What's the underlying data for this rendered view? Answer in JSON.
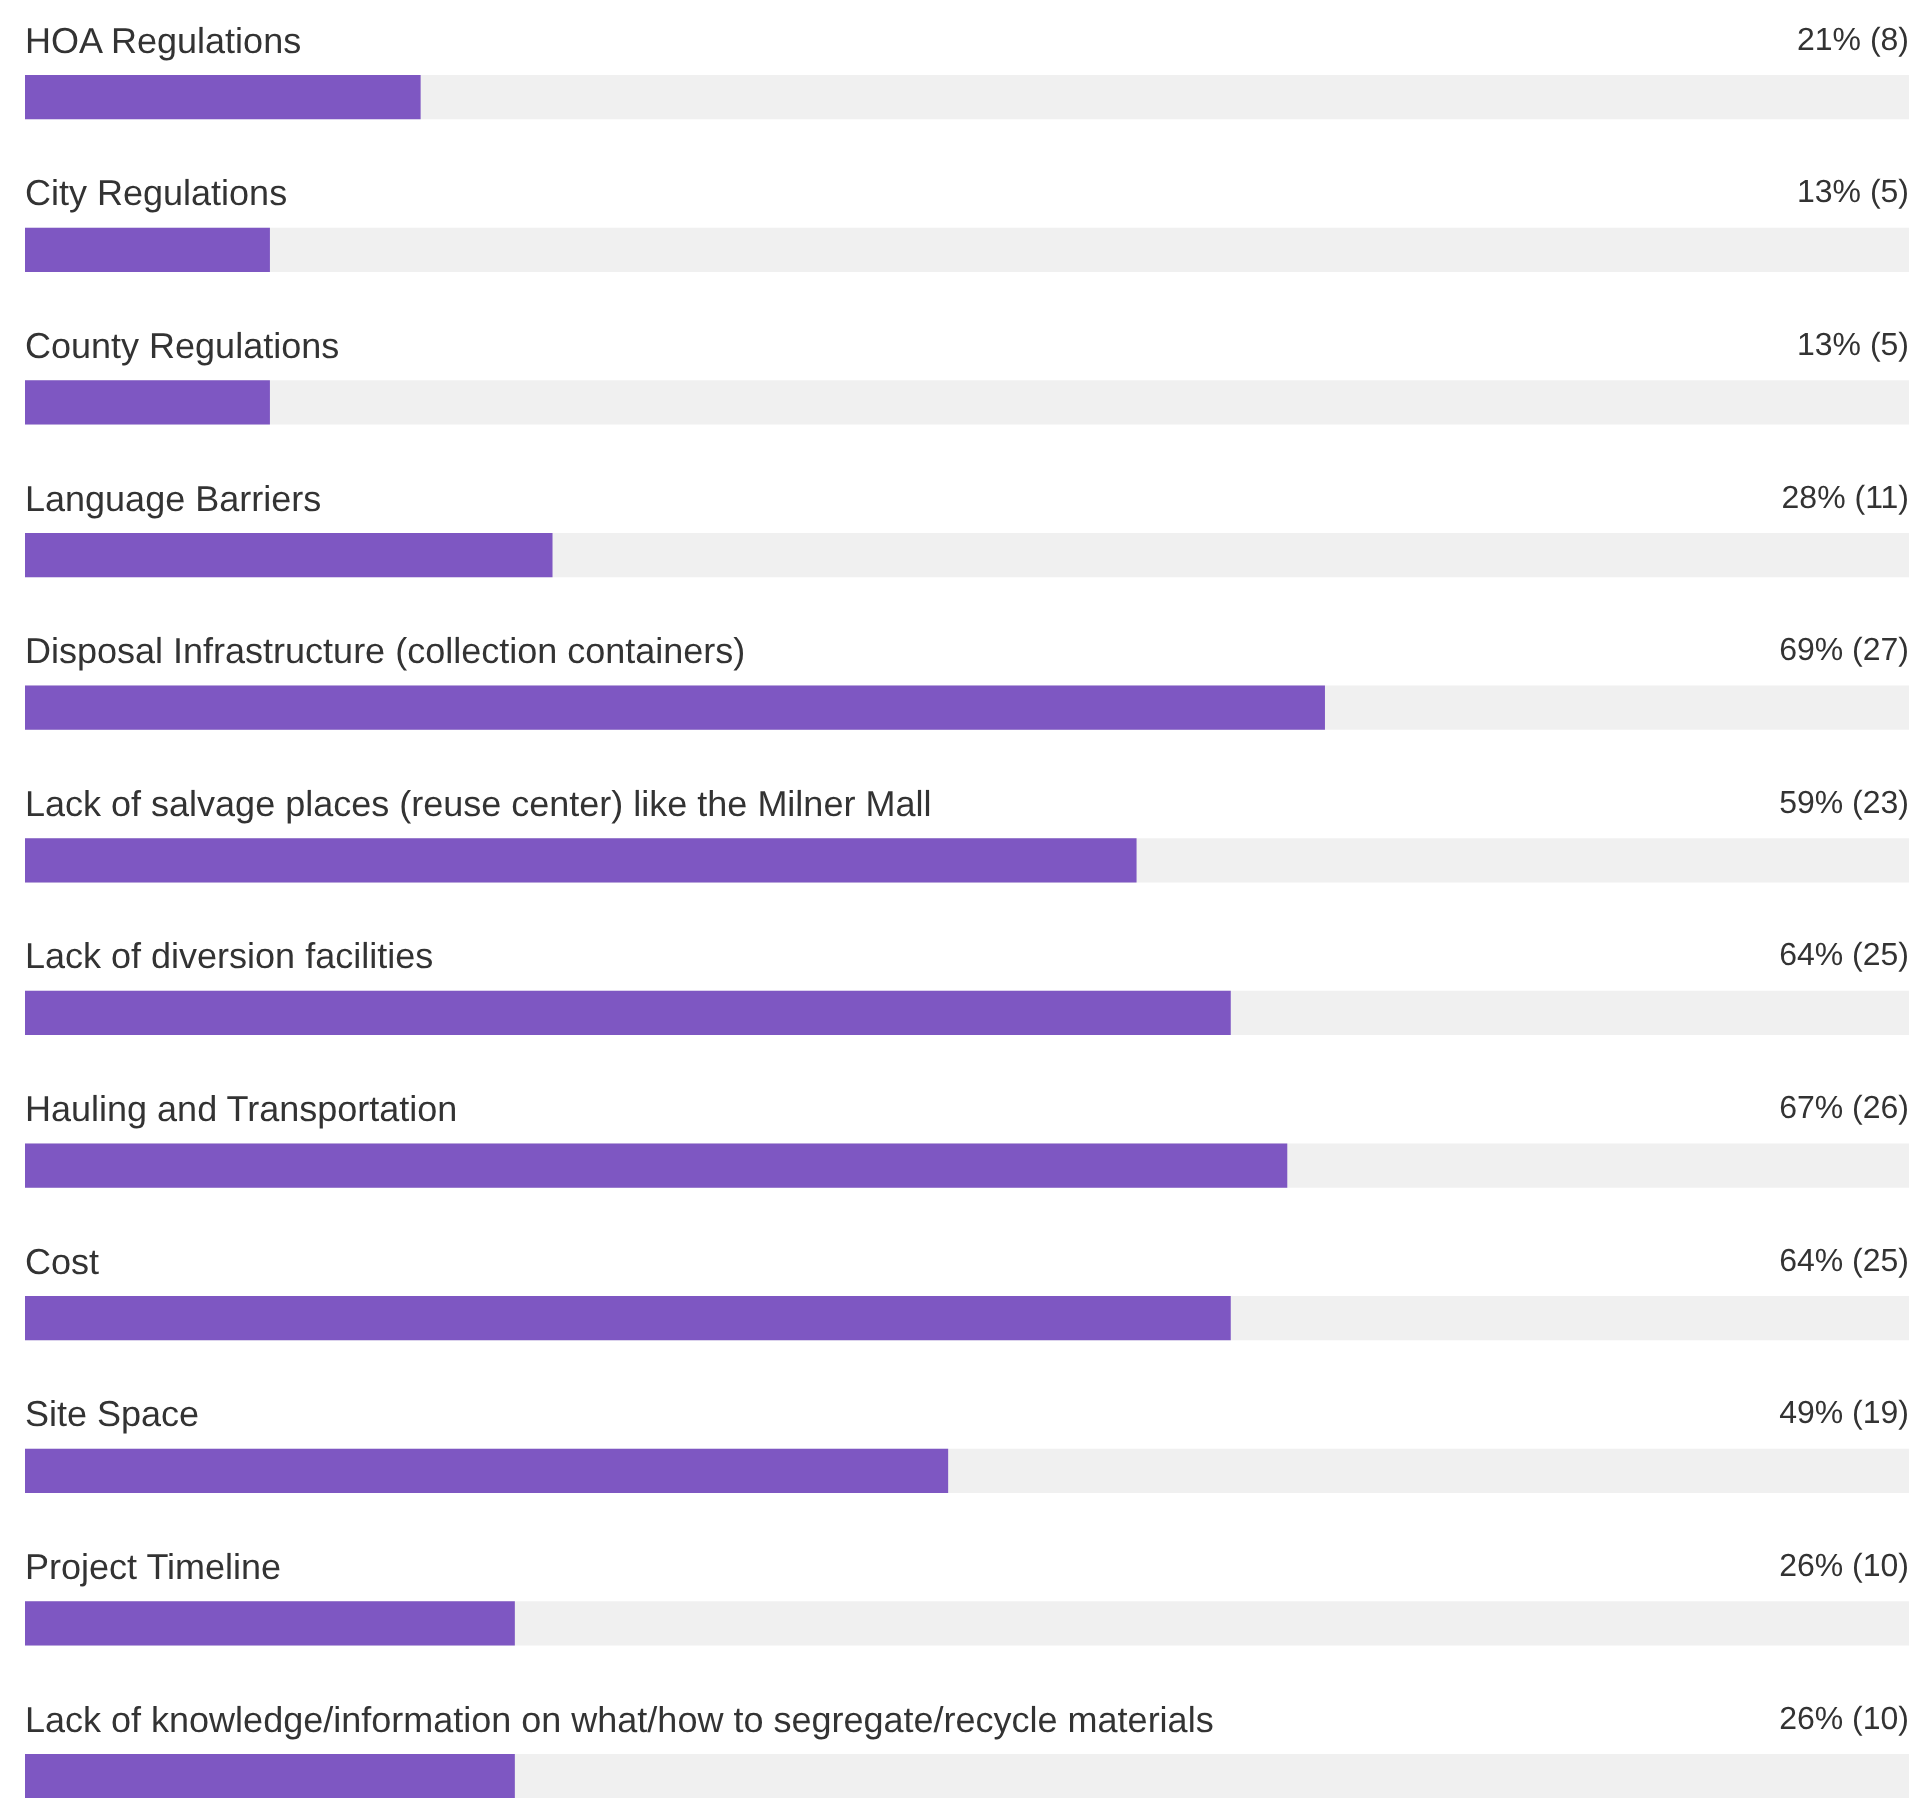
{
  "chart_data": {
    "type": "bar",
    "orientation": "horizontal",
    "categories": [
      "HOA Regulations",
      "City Regulations",
      "County Regulations",
      "Language Barriers",
      "Disposal Infrastructure (collection containers)",
      "Lack of salvage places (reuse center) like the Milner Mall",
      "Lack of diversion facilities",
      "Hauling and Transportation",
      "Cost",
      "Site Space",
      "Project Timeline",
      "Lack of knowledge/information on what/how to segregate/recycle materials"
    ],
    "values": [
      21,
      13,
      13,
      28,
      69,
      59,
      64,
      67,
      64,
      49,
      26,
      26
    ],
    "value_labels": [
      "21% (8)",
      "13% (5)",
      "13% (5)",
      "28% (11)",
      "69% (27)",
      "59% (23)",
      "64% (25)",
      "67% (26)",
      "64% (25)",
      "49% (19)",
      "26% (10)",
      "26% (10)"
    ],
    "color": "#7e57c2",
    "xlim": [
      0,
      100
    ],
    "tick_labels": false,
    "grid": false
  }
}
